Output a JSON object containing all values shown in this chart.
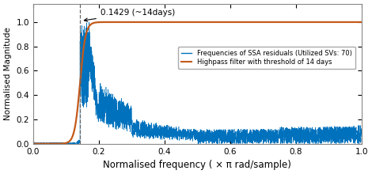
{
  "xlabel": "Normalised frequency ( × π rad/sample)",
  "ylabel": "Normalised Magnitude",
  "xlim": [
    0,
    1
  ],
  "ylim": [
    0,
    1.15
  ],
  "threshold_freq": 0.1429,
  "annotation_text": "0.1429 (~14days)",
  "legend_line1": "Frequencies of SSA residuals (Utilized SVs: 70)",
  "legend_line2": "Highpass filter with threshold of 14 days",
  "blue_color": "#0072BD",
  "orange_color": "#C45A1A",
  "dashed_color": "#666666",
  "n_points": 4000,
  "noise_seed": 7,
  "filter_steepness": 120,
  "xticks": [
    0,
    0.2,
    0.4,
    0.6,
    0.8,
    1.0
  ],
  "yticks": [
    0,
    0.2,
    0.4,
    0.6,
    0.8,
    1.0
  ],
  "figsize": [
    4.7,
    2.2
  ],
  "dpi": 100
}
